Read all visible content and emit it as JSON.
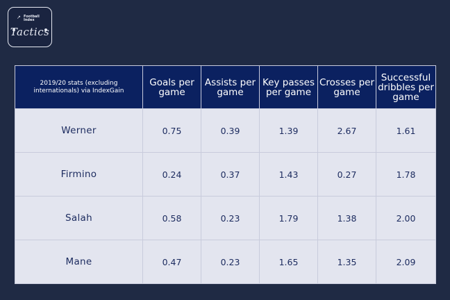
{
  "logo": {
    "line1": "Football",
    "line2": "Index",
    "word": "Tactics"
  },
  "table": {
    "headers": [
      "2019/20 stats (excluding internationals) via IndexGain",
      "Goals per game",
      "Assists per game",
      "Key passes per game",
      "Crosses per game",
      "Successful dribbles per game"
    ],
    "rows": [
      {
        "player": "Werner",
        "values": [
          "0.75",
          "0.39",
          "1.39",
          "2.67",
          "1.61"
        ]
      },
      {
        "player": "Firmino",
        "values": [
          "0.24",
          "0.37",
          "1.43",
          "0.27",
          "1.78"
        ]
      },
      {
        "player": "Salah",
        "values": [
          "0.58",
          "0.23",
          "1.79",
          "1.38",
          "2.00"
        ]
      },
      {
        "player": "Mane",
        "values": [
          "0.47",
          "0.23",
          "1.65",
          "1.35",
          "2.09"
        ]
      }
    ]
  },
  "colors": {
    "background": "#1f2a44",
    "header": "#0b2160",
    "cell": "#e3e5ef",
    "text": "#1b2a5e"
  }
}
